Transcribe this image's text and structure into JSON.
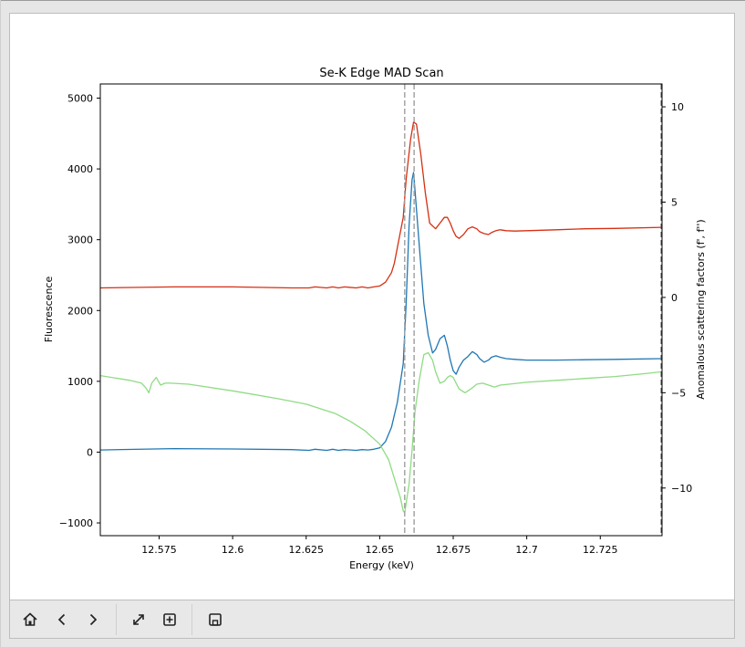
{
  "toolbar": {
    "icons": [
      "home-icon",
      "back-icon",
      "forward-icon",
      "pan-icon",
      "zoom-icon",
      "save-icon"
    ]
  },
  "chart_data": {
    "type": "line",
    "title": "Se-K Edge MAD Scan",
    "xlabel": "Energy (keV)",
    "ylabel": "Fluorescence",
    "y2label": "Anomalous scattering factors (f', f'')",
    "xlim": [
      12.555,
      12.746
    ],
    "ylim": [
      -1180,
      5200
    ],
    "y2lim": [
      -12.5,
      11.2
    ],
    "xticks": [
      "12.575",
      "12.6",
      "12.625",
      "12.65",
      "12.675",
      "12.7",
      "12.725"
    ],
    "xtick_values": [
      12.575,
      12.6,
      12.625,
      12.65,
      12.675,
      12.7,
      12.725
    ],
    "yticks": [
      "5000",
      "4000",
      "3000",
      "2000",
      "1000",
      "0",
      "−1000"
    ],
    "ytick_values": [
      5000,
      4000,
      3000,
      2000,
      1000,
      0,
      -1000
    ],
    "y2ticks": [
      "10",
      "5",
      "0",
      "−5",
      "−10"
    ],
    "y2tick_values": [
      10,
      5,
      0,
      -5,
      -10
    ],
    "grid": false,
    "vlines": [
      12.6585,
      12.6617
    ],
    "colors": {
      "fluorescence": "#1f77b4",
      "f_double_prime": "#d62f12",
      "f_prime": "#8fdb84",
      "vline": "#9e9e9e"
    },
    "series": [
      {
        "axis": "left",
        "color": "#1f77b4",
        "x": [
          12.555,
          12.58,
          12.6,
          12.62,
          12.626,
          12.628,
          12.632,
          12.634,
          12.636,
          12.638,
          12.642,
          12.644,
          12.646,
          12.648,
          12.65,
          12.652,
          12.654,
          12.656,
          12.658,
          12.659,
          12.66,
          12.661,
          12.6615,
          12.662,
          12.6635,
          12.665,
          12.6665,
          12.668,
          12.669,
          12.6705,
          12.672,
          12.673,
          12.674,
          12.675,
          12.676,
          12.677,
          12.6785,
          12.68,
          12.6815,
          12.683,
          12.684,
          12.6855,
          12.687,
          12.688,
          12.6895,
          12.691,
          12.693,
          12.696,
          12.7,
          12.71,
          12.72,
          12.73,
          12.746
        ],
        "y": [
          30,
          50,
          45,
          35,
          25,
          40,
          25,
          40,
          25,
          35,
          25,
          35,
          30,
          40,
          60,
          150,
          350,
          700,
          1250,
          2100,
          3200,
          3850,
          3950,
          3700,
          2900,
          2100,
          1650,
          1400,
          1450,
          1600,
          1650,
          1500,
          1300,
          1150,
          1100,
          1200,
          1300,
          1350,
          1420,
          1380,
          1320,
          1270,
          1300,
          1340,
          1360,
          1340,
          1320,
          1310,
          1300,
          1300,
          1305,
          1310,
          1320
        ]
      },
      {
        "axis": "right",
        "color": "#d62f12",
        "x": [
          12.555,
          12.58,
          12.6,
          12.62,
          12.626,
          12.628,
          12.632,
          12.634,
          12.636,
          12.638,
          12.642,
          12.644,
          12.646,
          12.648,
          12.65,
          12.652,
          12.654,
          12.655,
          12.656,
          12.658,
          12.659,
          12.6605,
          12.6615,
          12.6625,
          12.664,
          12.6655,
          12.667,
          12.669,
          12.6705,
          12.672,
          12.673,
          12.674,
          12.675,
          12.676,
          12.677,
          12.6785,
          12.68,
          12.6815,
          12.683,
          12.684,
          12.6855,
          12.687,
          12.688,
          12.6895,
          12.691,
          12.693,
          12.696,
          12.7,
          12.71,
          12.72,
          12.73,
          12.746
        ],
        "y": [
          0.5,
          0.55,
          0.55,
          0.5,
          0.5,
          0.55,
          0.5,
          0.55,
          0.5,
          0.55,
          0.5,
          0.55,
          0.5,
          0.55,
          0.6,
          0.8,
          1.3,
          1.8,
          2.6,
          4.2,
          6.2,
          8.3,
          9.2,
          9.1,
          7.5,
          5.5,
          3.9,
          3.6,
          3.9,
          4.2,
          4.2,
          3.9,
          3.5,
          3.2,
          3.1,
          3.3,
          3.6,
          3.7,
          3.6,
          3.45,
          3.35,
          3.3,
          3.4,
          3.5,
          3.55,
          3.5,
          3.48,
          3.5,
          3.55,
          3.6,
          3.62,
          3.68
        ]
      },
      {
        "axis": "right",
        "color": "#8fdb84",
        "x": [
          12.555,
          12.565,
          12.569,
          12.5705,
          12.5715,
          12.5725,
          12.574,
          12.5755,
          12.577,
          12.579,
          12.585,
          12.6,
          12.615,
          12.625,
          12.635,
          12.64,
          12.645,
          12.65,
          12.653,
          12.655,
          12.657,
          12.658,
          12.6585,
          12.66,
          12.661,
          12.662,
          12.6635,
          12.665,
          12.6665,
          12.668,
          12.669,
          12.6705,
          12.672,
          12.673,
          12.674,
          12.675,
          12.676,
          12.677,
          12.679,
          12.681,
          12.683,
          12.685,
          12.687,
          12.689,
          12.691,
          12.694,
          12.7,
          12.71,
          12.72,
          12.73,
          12.74,
          12.746
        ],
        "y": [
          -4.1,
          -4.35,
          -4.5,
          -4.75,
          -5,
          -4.5,
          -4.2,
          -4.6,
          -4.5,
          -4.5,
          -4.55,
          -4.9,
          -5.3,
          -5.6,
          -6.1,
          -6.5,
          -7,
          -7.7,
          -8.5,
          -9.5,
          -10.5,
          -11.2,
          -11.3,
          -9.8,
          -8,
          -6,
          -4.3,
          -3.0,
          -2.9,
          -3.3,
          -3.9,
          -4.5,
          -4.4,
          -4.2,
          -4.1,
          -4.2,
          -4.5,
          -4.8,
          -5,
          -4.8,
          -4.55,
          -4.5,
          -4.6,
          -4.7,
          -4.6,
          -4.55,
          -4.45,
          -4.35,
          -4.25,
          -4.15,
          -4.0,
          -3.9
        ]
      }
    ]
  }
}
